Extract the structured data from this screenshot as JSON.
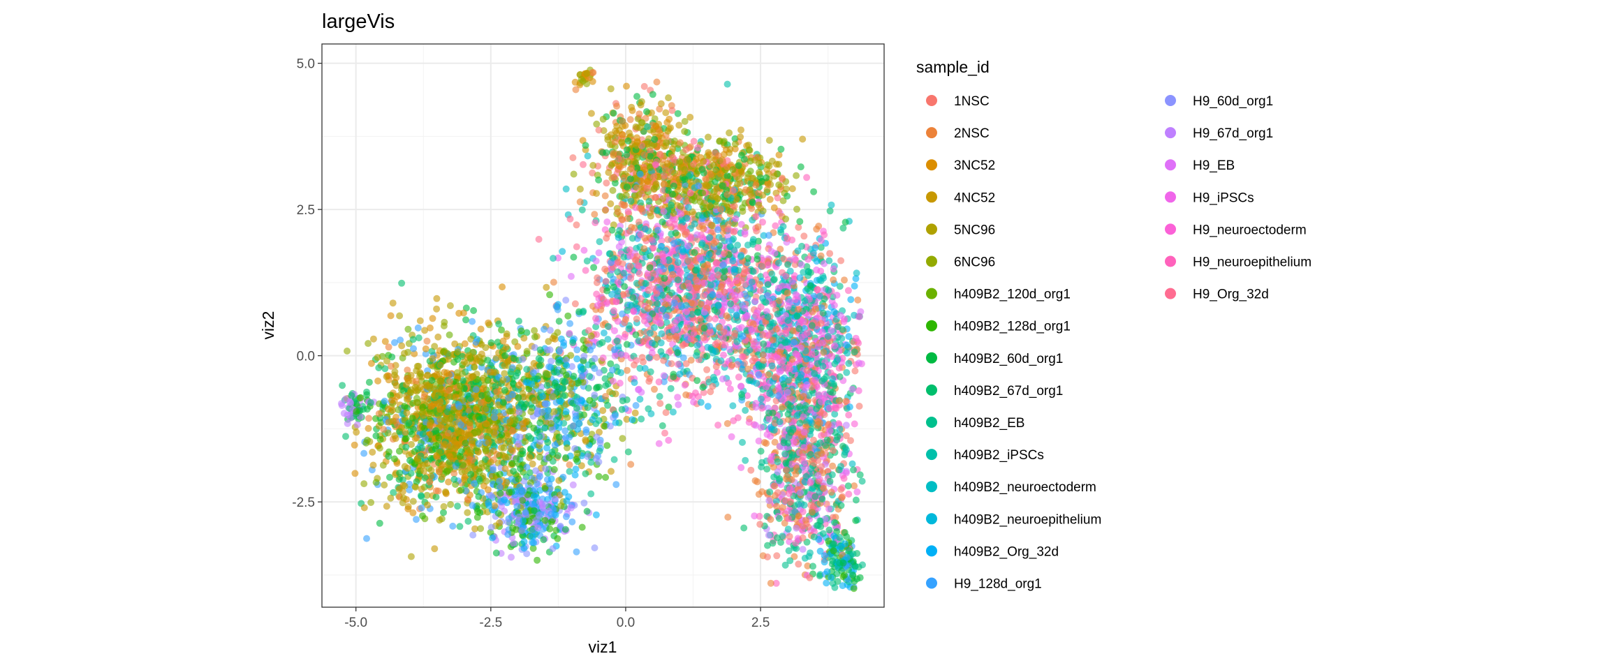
{
  "chart_data": {
    "type": "scatter",
    "title": "largeVis",
    "xlabel": "viz1",
    "ylabel": "viz2",
    "xlim": [
      -5.63,
      4.79
    ],
    "ylim": [
      -4.3,
      5.33
    ],
    "x_ticks": [
      -5.0,
      -2.5,
      0.0,
      2.5
    ],
    "x_tick_labels": [
      "-5.0",
      "-2.5",
      "0.0",
      "2.5"
    ],
    "y_ticks": [
      5.0,
      2.5,
      0.0,
      -2.5
    ],
    "y_tick_labels": [
      "5.0",
      "2.5",
      "0.0",
      "-2.5"
    ],
    "grid": true,
    "point_alpha": 0.6,
    "legend": {
      "title": "sample_id",
      "placement": "right",
      "entries": [
        "1NSC",
        "2NSC",
        "3NC52",
        "4NC52",
        "5NC96",
        "6NC96",
        "h409B2_120d_org1",
        "h409B2_128d_org1",
        "h409B2_60d_org1",
        "h409B2_67d_org1",
        "h409B2_EB",
        "h409B2_iPSCs",
        "h409B2_neuroectoderm",
        "h409B2_neuroepithelium",
        "h409B2_Org_32d",
        "H9_128d_org1",
        "H9_60d_org1",
        "H9_67d_org1",
        "H9_EB",
        "H9_iPSCs",
        "H9_neuroectoderm",
        "H9_neuroepithelium",
        "H9_Org_32d"
      ],
      "colors": [
        "#F8766D",
        "#EC8239",
        "#DB8E00",
        "#C79800",
        "#AFA100",
        "#93AA00",
        "#6BB100",
        "#2DB600",
        "#00BA42",
        "#00BE6C",
        "#00C08D",
        "#00C0AA",
        "#00BDC4",
        "#00B8DB",
        "#00B0F6",
        "#35A2FF",
        "#8B93FF",
        "#BF80FF",
        "#DF70F8",
        "#F066EA",
        "#FB61D7",
        "#FF62BC",
        "#FF6C91"
      ]
    },
    "point_clusters_note": "approximate point distribution per region (data units); series indices into legend.entries",
    "clusters": [
      {
        "cx": -3.2,
        "cy": -1.1,
        "sx": 0.75,
        "sy": 0.7,
        "n": 1500,
        "series": [
          2,
          3,
          3,
          4,
          4,
          5,
          2,
          6,
          7,
          8,
          1,
          15,
          9
        ]
      },
      {
        "cx": -5.0,
        "cy": -0.9,
        "sx": 0.18,
        "sy": 0.18,
        "n": 60,
        "series": [
          17,
          17,
          9,
          8
        ]
      },
      {
        "cx": -1.3,
        "cy": -0.8,
        "sx": 0.6,
        "sy": 0.7,
        "n": 550,
        "series": [
          15,
          14,
          8,
          9,
          3,
          16,
          10,
          5,
          7
        ]
      },
      {
        "cx": -1.8,
        "cy": -2.6,
        "sx": 0.45,
        "sy": 0.33,
        "n": 320,
        "series": [
          15,
          16,
          17,
          8,
          14,
          7
        ]
      },
      {
        "cx": -0.75,
        "cy": 4.75,
        "sx": 0.07,
        "sy": 0.08,
        "n": 25,
        "series": [
          2,
          4,
          5,
          1
        ]
      },
      {
        "cx": 0.3,
        "cy": 3.3,
        "sx": 0.45,
        "sy": 0.5,
        "n": 420,
        "series": [
          1,
          2,
          3,
          4,
          5,
          8,
          0
        ]
      },
      {
        "cx": 1.8,
        "cy": 3.0,
        "sx": 0.6,
        "sy": 0.35,
        "n": 420,
        "series": [
          3,
          4,
          5,
          6,
          8,
          2,
          1
        ]
      },
      {
        "cx": 1.1,
        "cy": 1.2,
        "sx": 0.9,
        "sy": 0.9,
        "n": 1600,
        "series": [
          0,
          1,
          0,
          1,
          19,
          20,
          21,
          22,
          8,
          10,
          11,
          12,
          13,
          15,
          18
        ]
      },
      {
        "cx": 3.2,
        "cy": 0.2,
        "sx": 0.6,
        "sy": 0.8,
        "n": 950,
        "series": [
          0,
          1,
          18,
          19,
          20,
          10,
          11,
          12,
          9,
          14,
          21
        ]
      },
      {
        "cx": 3.3,
        "cy": -2.0,
        "sx": 0.45,
        "sy": 0.8,
        "n": 650,
        "series": [
          0,
          1,
          1,
          21,
          19,
          10,
          9,
          11,
          17
        ]
      },
      {
        "cx": 4.0,
        "cy": -3.5,
        "sx": 0.2,
        "sy": 0.25,
        "n": 130,
        "series": [
          8,
          9,
          10,
          14,
          15,
          7
        ]
      }
    ]
  }
}
